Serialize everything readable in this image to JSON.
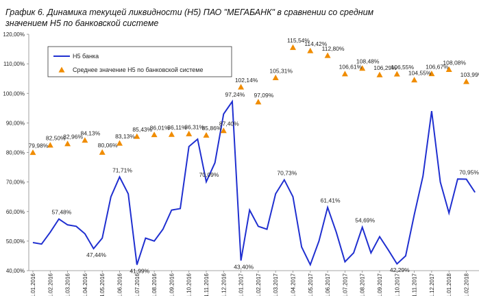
{
  "chart_data": {
    "type": "line",
    "title": [
      "График 6.  Динамика текущей ликвидности (Н5) ПАО \"МЕГАБАНК\"  в сравнении со средним",
      "значением Н5 по банковской системе"
    ],
    "categories": [
      "1.01.2016",
      null,
      "1.02.2016",
      null,
      "1.03.2016",
      null,
      "1.04.2016",
      null,
      "4.05.2016",
      null,
      "1.06.2016",
      null,
      "1.07.2016",
      null,
      "1.08.2016",
      null,
      "1.09.2016",
      null,
      "1.10.2016",
      null,
      "1.11.2016",
      null,
      "1.12.2016",
      null,
      "1.01.2017",
      null,
      "1.02.2017",
      null,
      "1.03.2017",
      null,
      "1.04.2017",
      null,
      "1.05.2017",
      null,
      "1.06.2017",
      null,
      "1.07.2017",
      null,
      "1.08.2017",
      null,
      "1.09.2017",
      null,
      "1.10.2017",
      null,
      "1.11.2017",
      null,
      "1.12.2017",
      null,
      "1.01.2018",
      null,
      "1.02.2018",
      null
    ],
    "series": [
      {
        "name": "Н5 банка",
        "color": "#1f2fd0",
        "marker": "none",
        "values": [
          49.5,
          49,
          53,
          57.48,
          55.5,
          55,
          52.5,
          47.44,
          51,
          65,
          71.71,
          66,
          41.99,
          51,
          50,
          54,
          60.5,
          61,
          82,
          84.5,
          70.09,
          76.5,
          93,
          97.24,
          43.4,
          60.5,
          55,
          54,
          66,
          70.73,
          65,
          48,
          42,
          50,
          61.41,
          53,
          43,
          46,
          54.69,
          46,
          51.5,
          47,
          42.29,
          45,
          59,
          72,
          94,
          70,
          59.5,
          71,
          70.95,
          66.5
        ],
        "value_labels": [
          null,
          null,
          null,
          "57,48%",
          null,
          null,
          null,
          "47,44%",
          null,
          null,
          "71,71%",
          null,
          "41,99%",
          null,
          null,
          null,
          null,
          null,
          null,
          null,
          "70,09%",
          null,
          null,
          "97,24%",
          "43,40%",
          null,
          null,
          null,
          null,
          "70,73%",
          null,
          null,
          null,
          null,
          "61,41%",
          null,
          null,
          null,
          "54,69%",
          null,
          null,
          null,
          "42,29%",
          null,
          null,
          null,
          null,
          null,
          null,
          null,
          "70,95%",
          null
        ]
      },
      {
        "name": "Среднее значение Н5 по банковской системе",
        "color": "#f08c00",
        "marker": "triangle",
        "values": [
          79.98,
          null,
          82.5,
          null,
          82.96,
          null,
          84.13,
          null,
          80.06,
          null,
          83.13,
          null,
          85.43,
          null,
          86.01,
          null,
          86.11,
          null,
          86.31,
          null,
          85.86,
          null,
          87.4,
          null,
          102.14,
          null,
          97.09,
          null,
          105.31,
          null,
          115.54,
          null,
          114.42,
          null,
          112.8,
          null,
          106.61,
          null,
          108.48,
          null,
          106.29,
          null,
          106.55,
          null,
          104.55,
          null,
          106.67,
          null,
          108.08,
          null,
          103.99,
          null
        ],
        "value_labels": [
          "79,98%",
          null,
          "82,50%",
          null,
          "82,96%",
          null,
          "84,13%",
          null,
          "80,06%",
          null,
          "83,13%",
          null,
          "85,43%",
          null,
          "86,01%",
          null,
          "86,11%",
          null,
          "86,31%",
          null,
          "85,86%",
          null,
          "87,40%",
          null,
          "102,14%",
          null,
          "97,09%",
          null,
          "105,31%",
          null,
          "115,54%",
          null,
          "114,42%",
          null,
          "112,80%",
          null,
          "106,61%",
          null,
          "108,48%",
          null,
          "106,29%",
          null,
          "106,55%",
          null,
          "104,55%",
          null,
          "106,67%",
          null,
          "108,08%",
          null,
          "103,99%",
          null
        ]
      }
    ],
    "ylim": [
      40,
      120
    ],
    "yticks": [
      {
        "value": 40,
        "label": "40,00%"
      },
      {
        "value": 50,
        "label": "50,00%"
      },
      {
        "value": 60,
        "label": "60,00%"
      },
      {
        "value": 70,
        "label": "70,00%"
      },
      {
        "value": 80,
        "label": "80,00%"
      },
      {
        "value": 90,
        "label": "90,00%"
      },
      {
        "value": 100,
        "label": "100,00%"
      },
      {
        "value": 110,
        "label": "110,00%"
      },
      {
        "value": 120,
        "label": "120,00%"
      }
    ],
    "grid": false,
    "legend": "upper left"
  }
}
